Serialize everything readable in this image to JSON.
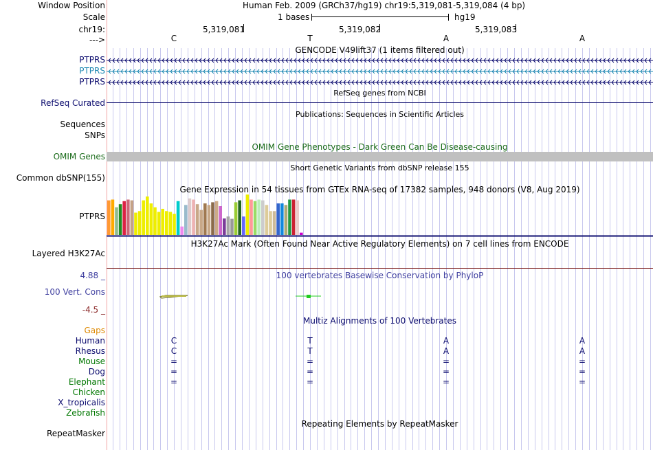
{
  "header": {
    "window_label": "Window Position",
    "window_value": "Human Feb. 2009 (GRCh37/hg19)   chr19:5,319,081-5,319,084 (4 bp)",
    "scale_label": "Scale",
    "scale_bar_label": "1 bases",
    "scale_assembly": "hg19",
    "chrom_label": "chr19:",
    "positions": [
      "5,319,081",
      "5,319,082",
      "5,319,083"
    ],
    "strand_label": "--->",
    "bases": [
      "C",
      "T",
      "A",
      "A"
    ]
  },
  "gencode": {
    "title": "GENCODE V49lift37 (1 items filtered out)",
    "rows": [
      {
        "label": "PTPRS",
        "color": "#0b0b6e"
      },
      {
        "label": "PTPRS",
        "color": "#1d88b2"
      },
      {
        "label": "PTPRS",
        "color": "#0b0b6e"
      }
    ]
  },
  "refseq": {
    "title": "RefSeq genes from NCBI",
    "label": "RefSeq Curated"
  },
  "publications": {
    "title": "Publications: Sequences in Scientific Articles",
    "label1": "Sequences",
    "label2": "SNPs"
  },
  "omim": {
    "title": "OMIM Gene Phenotypes - Dark Green Can Be Disease-causing",
    "label": "OMIM Genes"
  },
  "dbsnp": {
    "title": "Short Genetic Variants from dbSNP release 155",
    "label": "Common dbSNP(155)"
  },
  "gtex": {
    "title": "Gene Expression in 54 tissues from GTEx RNA-seq of 17382 samples, 948 donors (V8, Aug 2019)",
    "label": "PTPRS",
    "bars": [
      {
        "v": 0.9,
        "c": "#ff9933"
      },
      {
        "v": 0.92,
        "c": "#ffaa00"
      },
      {
        "v": 0.72,
        "c": "#8fbc8f"
      },
      {
        "v": 0.8,
        "c": "#228b22"
      },
      {
        "v": 0.88,
        "c": "#dd2244"
      },
      {
        "v": 0.92,
        "c": "#cc6677"
      },
      {
        "v": 0.9,
        "c": "#c4a287"
      },
      {
        "v": 0.58,
        "c": "#eeee00"
      },
      {
        "v": 0.62,
        "c": "#eeee00"
      },
      {
        "v": 0.9,
        "c": "#eeee00"
      },
      {
        "v": 1.0,
        "c": "#eeee00"
      },
      {
        "v": 0.82,
        "c": "#eeee00"
      },
      {
        "v": 0.72,
        "c": "#eeee00"
      },
      {
        "v": 0.6,
        "c": "#eeee00"
      },
      {
        "v": 0.68,
        "c": "#eeee00"
      },
      {
        "v": 0.62,
        "c": "#eeee00"
      },
      {
        "v": 0.6,
        "c": "#eeee00"
      },
      {
        "v": 0.55,
        "c": "#eeee00"
      },
      {
        "v": 0.88,
        "c": "#00cccc"
      },
      {
        "v": 0.22,
        "c": "#ee88ee"
      },
      {
        "v": 0.78,
        "c": "#99bbcc"
      },
      {
        "v": 0.95,
        "c": "#ddcccc"
      },
      {
        "v": 0.92,
        "c": "#eeb3b3"
      },
      {
        "v": 0.8,
        "c": "#c8a888"
      },
      {
        "v": 0.65,
        "c": "#c8a888"
      },
      {
        "v": 0.82,
        "c": "#a07850"
      },
      {
        "v": 0.78,
        "c": "#c8a888"
      },
      {
        "v": 0.85,
        "c": "#8b6b4a"
      },
      {
        "v": 0.88,
        "c": "#ccaa88"
      },
      {
        "v": 0.75,
        "c": "#cc66cc"
      },
      {
        "v": 0.43,
        "c": "#7a3d99"
      },
      {
        "v": 0.48,
        "c": "#a6a6a6"
      },
      {
        "v": 0.42,
        "c": "#999999"
      },
      {
        "v": 0.85,
        "c": "#99cc33"
      },
      {
        "v": 0.9,
        "c": "#226622"
      },
      {
        "v": 0.48,
        "c": "#6666ff"
      },
      {
        "v": 1.05,
        "c": "#eeee00"
      },
      {
        "v": 0.92,
        "c": "#ff9999"
      },
      {
        "v": 0.88,
        "c": "#99dd66"
      },
      {
        "v": 0.92,
        "c": "#bbeebb"
      },
      {
        "v": 0.9,
        "c": "#cccccc"
      },
      {
        "v": 0.78,
        "c": "#ddcc99"
      },
      {
        "v": 0.62,
        "c": "#ddcc99"
      },
      {
        "v": 0.62,
        "c": "#ccbb99"
      },
      {
        "v": 0.82,
        "c": "#3366cc"
      },
      {
        "v": 0.82,
        "c": "#1188dd"
      },
      {
        "v": 0.78,
        "c": "#aaaa77"
      },
      {
        "v": 0.92,
        "c": "#229944"
      },
      {
        "v": 0.92,
        "c": "#cc2233"
      },
      {
        "v": 0.9,
        "c": "#eecccc"
      },
      {
        "v": 0.06,
        "c": "#cc00cc"
      }
    ]
  },
  "h3k27ac": {
    "title": "H3K27Ac Mark (Often Found Near Active Regulatory Elements) on 7 cell lines from ENCODE",
    "label": "Layered H3K27Ac"
  },
  "phylop": {
    "title": "100 vertebrates Basewise Conservation by PhyloP",
    "label": "100 Vert. Cons",
    "max": "4.88 _",
    "min": "-4.5 _",
    "bars": [
      {
        "v": 0.15,
        "c": "#777722"
      },
      {
        "v": 0.6,
        "c": "#22cc22"
      }
    ]
  },
  "multiz": {
    "title": "Multiz Alignments of 100 Vertebrates",
    "species": [
      {
        "name": "Gaps",
        "color": "#dd8800",
        "bases": [
          "",
          "",
          "",
          ""
        ]
      },
      {
        "name": "Human",
        "color": "#0b0b6e",
        "bases": [
          "C",
          "T",
          "A",
          "A"
        ]
      },
      {
        "name": "Rhesus",
        "color": "#0b0b6e",
        "bases": [
          "C",
          "T",
          "A",
          "A"
        ]
      },
      {
        "name": "Mouse",
        "color": "#007700",
        "bases": [
          "=",
          "=",
          "=",
          "="
        ]
      },
      {
        "name": "Dog",
        "color": "#0b0b6e",
        "bases": [
          "=",
          "=",
          "=",
          "="
        ]
      },
      {
        "name": "Elephant",
        "color": "#007700",
        "bases": [
          "=",
          "=",
          "=",
          "="
        ]
      },
      {
        "name": "Chicken",
        "color": "#007700",
        "bases": [
          "",
          "",
          "",
          ""
        ]
      },
      {
        "name": "X_tropicalis",
        "color": "#0b0b6e",
        "bases": [
          "",
          "",
          "",
          ""
        ]
      },
      {
        "name": "Zebrafish",
        "color": "#007700",
        "bases": [
          "",
          "",
          "",
          ""
        ]
      }
    ]
  },
  "repeatmasker": {
    "title": "Repeating Elements by RepeatMasker",
    "label": "RepeatMasker"
  },
  "colors": {
    "navy": "#0b0b6e",
    "omim_bar": "#c0c0c0",
    "left_border": "#f2a3a3",
    "grid": "#c8c8ee",
    "separator": "#7a1a1a",
    "phylop_label": "#4040a0",
    "phylop_min": "#8b2a2a"
  }
}
